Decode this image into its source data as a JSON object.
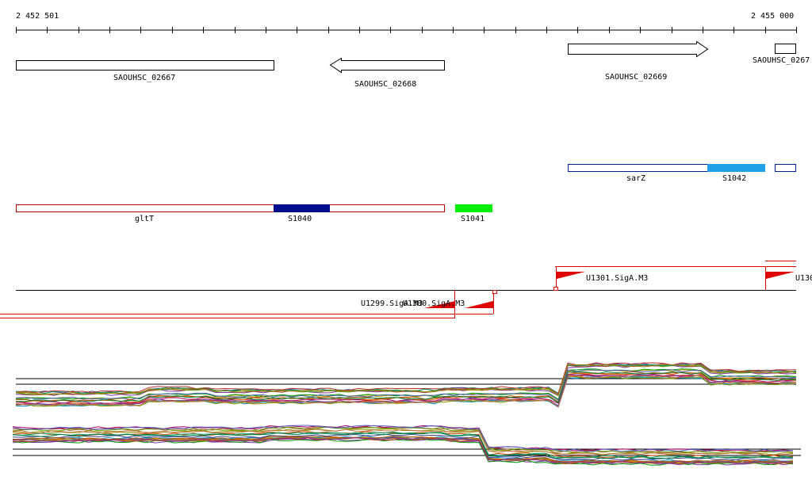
{
  "ruler": {
    "start_label": "2 452 501",
    "end_label": "2 455 000"
  },
  "genes": [
    {
      "label": "SAOUHSC_02667",
      "strand": "none"
    },
    {
      "label": "SAOUHSC_02668",
      "strand": "reverse"
    },
    {
      "label": "SAOUHSC_02669",
      "strand": "forward"
    },
    {
      "label": "SAOUHSC_0267",
      "strand": "none"
    }
  ],
  "blue_track": [
    {
      "label": "sarZ",
      "fill": "#ffffff",
      "stroke": "#00208f"
    },
    {
      "label": "S1042",
      "fill": "#1fa0e8",
      "stroke": "#1fa0e8"
    },
    {
      "label": "",
      "fill": "#ffffff",
      "stroke": "#00208f"
    }
  ],
  "red_track": [
    {
      "label": "gltT",
      "fill": "#ffffff",
      "stroke": "#c00000"
    },
    {
      "label": "S1040",
      "fill": "#000d8c",
      "stroke": "#000d8c"
    },
    {
      "label": "S1041",
      "fill": "#00ee00",
      "stroke": "#00ee00"
    }
  ],
  "promoters": [
    {
      "label": "U1299.SigA.M3"
    },
    {
      "label": "U1300.SigA.M3"
    },
    {
      "label": "U1301.SigA.M3"
    },
    {
      "label": "U130"
    }
  ],
  "colors": {
    "promoter_red": "#e00000",
    "series": [
      "#c8a000",
      "#7a3aa0",
      "#00a000",
      "#d04000",
      "#a05020",
      "#1080c0",
      "#20a0a0",
      "#b00060",
      "#60a000",
      "#e06000",
      "#404090",
      "#909000",
      "#00a070",
      "#c03030",
      "#5060c0",
      "#a08000",
      "#b05000",
      "#008040",
      "#8030a0",
      "#c07040"
    ]
  }
}
